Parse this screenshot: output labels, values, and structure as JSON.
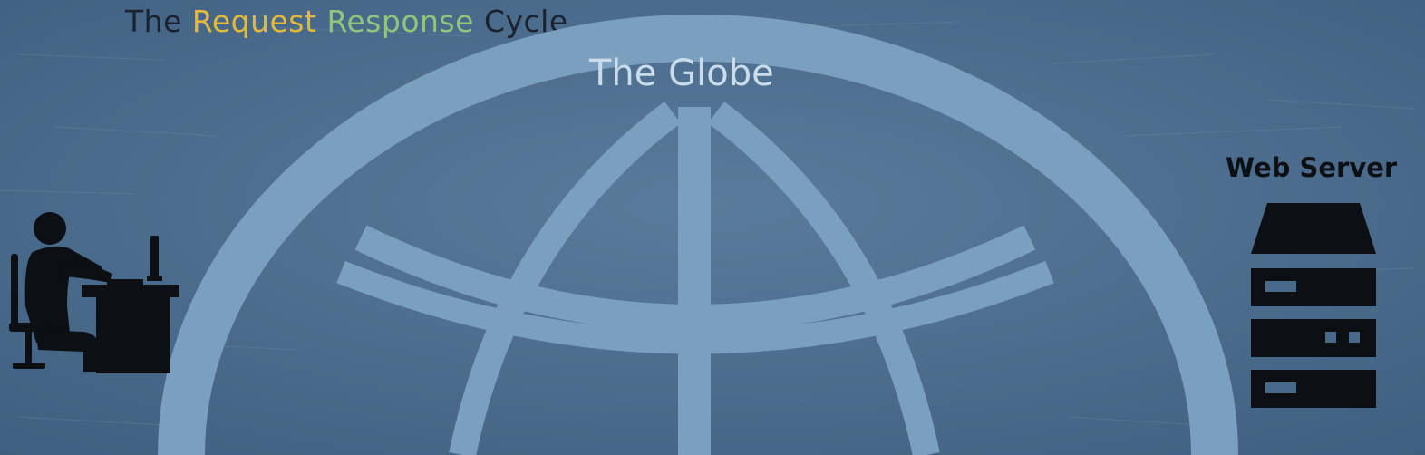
{
  "title": {
    "word1": "The",
    "word2": "Request",
    "word3": "Response",
    "word4": "Cycle"
  },
  "globe": {
    "label": "The Globe",
    "icon": "globe-icon"
  },
  "client": {
    "icon": "person-at-computer-icon"
  },
  "server": {
    "label": "Web Server",
    "icon": "server-rack-icon"
  },
  "colors": {
    "background": "#48698a",
    "globe": "#7b9fbe",
    "request": "#e3b93a",
    "response": "#8fc57c",
    "dark": "#0c0f14"
  }
}
